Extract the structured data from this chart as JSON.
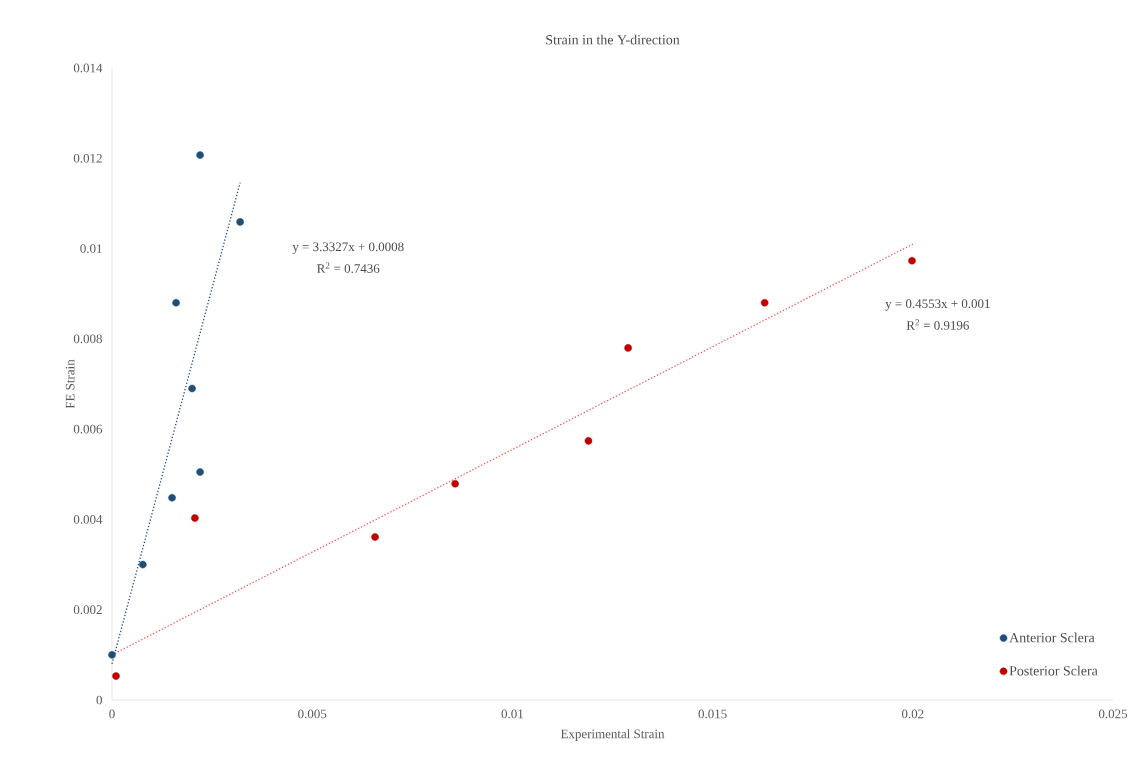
{
  "chart_data": {
    "type": "scatter",
    "title": "Strain in the Y-direction",
    "xlabel": "Experimental Strain",
    "ylabel": "FE Strain",
    "xlim": [
      0,
      0.025
    ],
    "xticks": [
      0,
      0.005,
      0.01,
      0.015,
      0.02,
      0.025
    ],
    "ylim": [
      0,
      0.014
    ],
    "yticks": [
      0,
      0.002,
      0.004,
      0.006,
      0.008,
      0.01,
      0.012,
      0.014
    ],
    "grid": false,
    "legend": "bottom right",
    "marker": "circle",
    "series": [
      {
        "name": "Anterior Sclera",
        "color": "#1f4e79",
        "x": [
          0,
          0.00077,
          0.0015,
          0.0022,
          0.002,
          0.0016,
          0.0022,
          0.0032
        ],
        "values": [
          0.001,
          0.003,
          0.00448,
          0.00505,
          0.0069,
          0.0088,
          0.01207,
          0.01059
        ]
      },
      {
        "name": "Posterior Sclera",
        "color": "#c00000",
        "x": [
          0.0001,
          0.00207,
          0.00657,
          0.00857,
          0.0119,
          0.01289,
          0.0163,
          0.01998
        ],
        "values": [
          0.00053,
          0.00403,
          0.00361,
          0.00479,
          0.00574,
          0.0078,
          0.0088,
          0.00973
        ]
      },
      {
        "type": "line",
        "color": "#1f4e79",
        "line_style": "dotted",
        "marker": "none",
        "x": [
          0,
          0.0032
        ],
        "values": [
          0.0008,
          0.01146
        ]
      },
      {
        "type": "line",
        "color": "#ff5050",
        "line_style": "dotted",
        "marker": "none",
        "x": [
          0,
          0.02
        ],
        "values": [
          0.001,
          0.0101
        ]
      }
    ],
    "annotations": [
      "y = 3.3327x + 0.0008",
      "R$^{2}$ = 0.7436",
      "y = 0.4553x + 0.001",
      "R$^{2}$ = 0.9196"
    ]
  }
}
